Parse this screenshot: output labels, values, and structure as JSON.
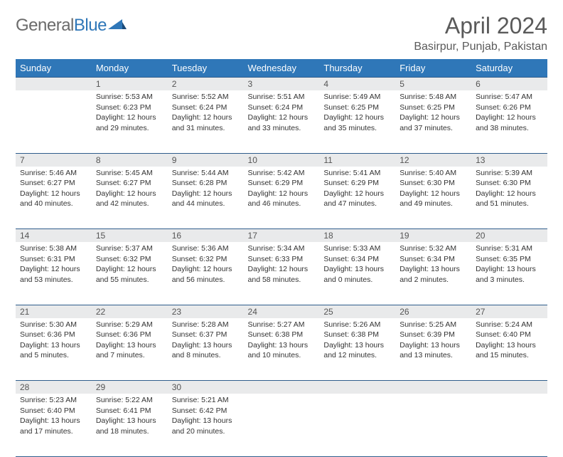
{
  "logo": {
    "word1": "General",
    "word2": "Blue"
  },
  "title": "April 2024",
  "location": "Basirpur, Punjab, Pakistan",
  "day_headers": [
    "Sunday",
    "Monday",
    "Tuesday",
    "Wednesday",
    "Thursday",
    "Friday",
    "Saturday"
  ],
  "colors": {
    "header_bg": "#2f77b8",
    "header_text": "#ffffff",
    "daynum_bg": "#e9eaeb",
    "border": "#2f5d8c",
    "logo_gray": "#6b6b6b",
    "logo_blue": "#2f77b8"
  },
  "weeks": [
    [
      {
        "num": "",
        "sunrise": "",
        "sunset": "",
        "daylight1": "",
        "daylight2": ""
      },
      {
        "num": "1",
        "sunrise": "Sunrise: 5:53 AM",
        "sunset": "Sunset: 6:23 PM",
        "daylight1": "Daylight: 12 hours",
        "daylight2": "and 29 minutes."
      },
      {
        "num": "2",
        "sunrise": "Sunrise: 5:52 AM",
        "sunset": "Sunset: 6:24 PM",
        "daylight1": "Daylight: 12 hours",
        "daylight2": "and 31 minutes."
      },
      {
        "num": "3",
        "sunrise": "Sunrise: 5:51 AM",
        "sunset": "Sunset: 6:24 PM",
        "daylight1": "Daylight: 12 hours",
        "daylight2": "and 33 minutes."
      },
      {
        "num": "4",
        "sunrise": "Sunrise: 5:49 AM",
        "sunset": "Sunset: 6:25 PM",
        "daylight1": "Daylight: 12 hours",
        "daylight2": "and 35 minutes."
      },
      {
        "num": "5",
        "sunrise": "Sunrise: 5:48 AM",
        "sunset": "Sunset: 6:25 PM",
        "daylight1": "Daylight: 12 hours",
        "daylight2": "and 37 minutes."
      },
      {
        "num": "6",
        "sunrise": "Sunrise: 5:47 AM",
        "sunset": "Sunset: 6:26 PM",
        "daylight1": "Daylight: 12 hours",
        "daylight2": "and 38 minutes."
      }
    ],
    [
      {
        "num": "7",
        "sunrise": "Sunrise: 5:46 AM",
        "sunset": "Sunset: 6:27 PM",
        "daylight1": "Daylight: 12 hours",
        "daylight2": "and 40 minutes."
      },
      {
        "num": "8",
        "sunrise": "Sunrise: 5:45 AM",
        "sunset": "Sunset: 6:27 PM",
        "daylight1": "Daylight: 12 hours",
        "daylight2": "and 42 minutes."
      },
      {
        "num": "9",
        "sunrise": "Sunrise: 5:44 AM",
        "sunset": "Sunset: 6:28 PM",
        "daylight1": "Daylight: 12 hours",
        "daylight2": "and 44 minutes."
      },
      {
        "num": "10",
        "sunrise": "Sunrise: 5:42 AM",
        "sunset": "Sunset: 6:29 PM",
        "daylight1": "Daylight: 12 hours",
        "daylight2": "and 46 minutes."
      },
      {
        "num": "11",
        "sunrise": "Sunrise: 5:41 AM",
        "sunset": "Sunset: 6:29 PM",
        "daylight1": "Daylight: 12 hours",
        "daylight2": "and 47 minutes."
      },
      {
        "num": "12",
        "sunrise": "Sunrise: 5:40 AM",
        "sunset": "Sunset: 6:30 PM",
        "daylight1": "Daylight: 12 hours",
        "daylight2": "and 49 minutes."
      },
      {
        "num": "13",
        "sunrise": "Sunrise: 5:39 AM",
        "sunset": "Sunset: 6:30 PM",
        "daylight1": "Daylight: 12 hours",
        "daylight2": "and 51 minutes."
      }
    ],
    [
      {
        "num": "14",
        "sunrise": "Sunrise: 5:38 AM",
        "sunset": "Sunset: 6:31 PM",
        "daylight1": "Daylight: 12 hours",
        "daylight2": "and 53 minutes."
      },
      {
        "num": "15",
        "sunrise": "Sunrise: 5:37 AM",
        "sunset": "Sunset: 6:32 PM",
        "daylight1": "Daylight: 12 hours",
        "daylight2": "and 55 minutes."
      },
      {
        "num": "16",
        "sunrise": "Sunrise: 5:36 AM",
        "sunset": "Sunset: 6:32 PM",
        "daylight1": "Daylight: 12 hours",
        "daylight2": "and 56 minutes."
      },
      {
        "num": "17",
        "sunrise": "Sunrise: 5:34 AM",
        "sunset": "Sunset: 6:33 PM",
        "daylight1": "Daylight: 12 hours",
        "daylight2": "and 58 minutes."
      },
      {
        "num": "18",
        "sunrise": "Sunrise: 5:33 AM",
        "sunset": "Sunset: 6:34 PM",
        "daylight1": "Daylight: 13 hours",
        "daylight2": "and 0 minutes."
      },
      {
        "num": "19",
        "sunrise": "Sunrise: 5:32 AM",
        "sunset": "Sunset: 6:34 PM",
        "daylight1": "Daylight: 13 hours",
        "daylight2": "and 2 minutes."
      },
      {
        "num": "20",
        "sunrise": "Sunrise: 5:31 AM",
        "sunset": "Sunset: 6:35 PM",
        "daylight1": "Daylight: 13 hours",
        "daylight2": "and 3 minutes."
      }
    ],
    [
      {
        "num": "21",
        "sunrise": "Sunrise: 5:30 AM",
        "sunset": "Sunset: 6:36 PM",
        "daylight1": "Daylight: 13 hours",
        "daylight2": "and 5 minutes."
      },
      {
        "num": "22",
        "sunrise": "Sunrise: 5:29 AM",
        "sunset": "Sunset: 6:36 PM",
        "daylight1": "Daylight: 13 hours",
        "daylight2": "and 7 minutes."
      },
      {
        "num": "23",
        "sunrise": "Sunrise: 5:28 AM",
        "sunset": "Sunset: 6:37 PM",
        "daylight1": "Daylight: 13 hours",
        "daylight2": "and 8 minutes."
      },
      {
        "num": "24",
        "sunrise": "Sunrise: 5:27 AM",
        "sunset": "Sunset: 6:38 PM",
        "daylight1": "Daylight: 13 hours",
        "daylight2": "and 10 minutes."
      },
      {
        "num": "25",
        "sunrise": "Sunrise: 5:26 AM",
        "sunset": "Sunset: 6:38 PM",
        "daylight1": "Daylight: 13 hours",
        "daylight2": "and 12 minutes."
      },
      {
        "num": "26",
        "sunrise": "Sunrise: 5:25 AM",
        "sunset": "Sunset: 6:39 PM",
        "daylight1": "Daylight: 13 hours",
        "daylight2": "and 13 minutes."
      },
      {
        "num": "27",
        "sunrise": "Sunrise: 5:24 AM",
        "sunset": "Sunset: 6:40 PM",
        "daylight1": "Daylight: 13 hours",
        "daylight2": "and 15 minutes."
      }
    ],
    [
      {
        "num": "28",
        "sunrise": "Sunrise: 5:23 AM",
        "sunset": "Sunset: 6:40 PM",
        "daylight1": "Daylight: 13 hours",
        "daylight2": "and 17 minutes."
      },
      {
        "num": "29",
        "sunrise": "Sunrise: 5:22 AM",
        "sunset": "Sunset: 6:41 PM",
        "daylight1": "Daylight: 13 hours",
        "daylight2": "and 18 minutes."
      },
      {
        "num": "30",
        "sunrise": "Sunrise: 5:21 AM",
        "sunset": "Sunset: 6:42 PM",
        "daylight1": "Daylight: 13 hours",
        "daylight2": "and 20 minutes."
      },
      {
        "num": "",
        "sunrise": "",
        "sunset": "",
        "daylight1": "",
        "daylight2": ""
      },
      {
        "num": "",
        "sunrise": "",
        "sunset": "",
        "daylight1": "",
        "daylight2": ""
      },
      {
        "num": "",
        "sunrise": "",
        "sunset": "",
        "daylight1": "",
        "daylight2": ""
      },
      {
        "num": "",
        "sunrise": "",
        "sunset": "",
        "daylight1": "",
        "daylight2": ""
      }
    ]
  ]
}
